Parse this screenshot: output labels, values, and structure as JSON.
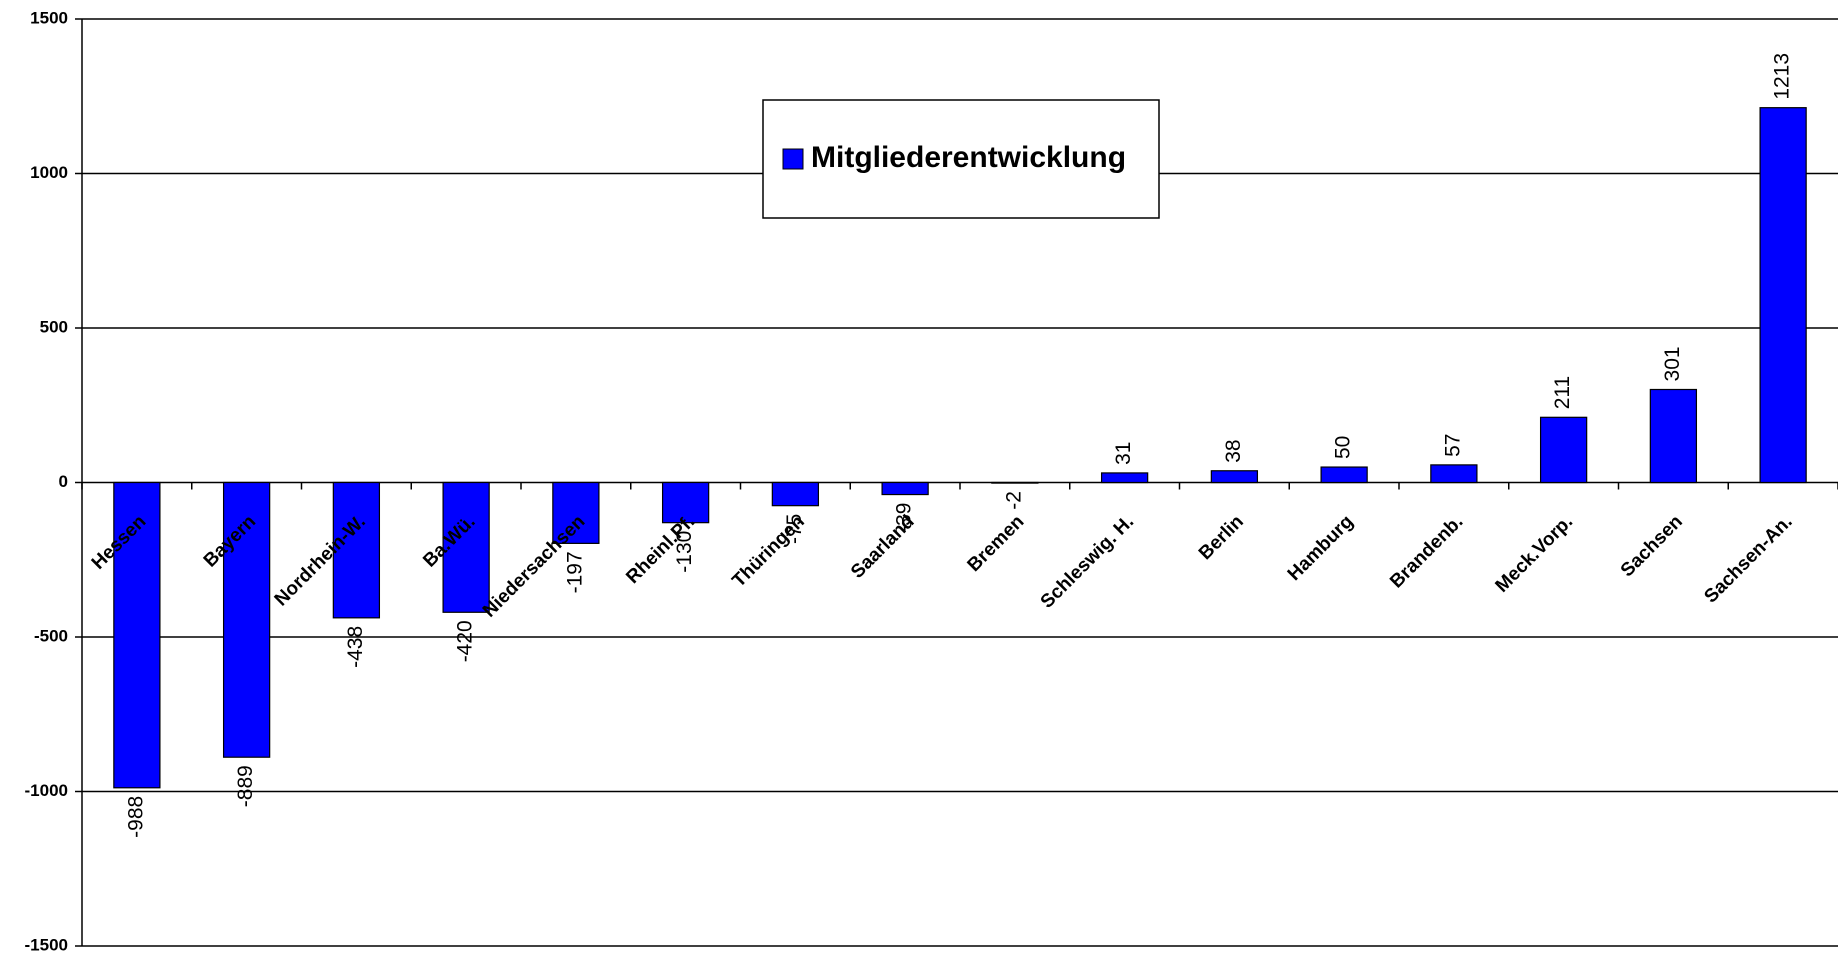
{
  "chart_data": {
    "type": "bar",
    "categories": [
      "Hessen",
      "Bayern",
      "Nordrhein-W.",
      "Ba.Wü.",
      "Niedersachsen",
      "Rheinl.Pf.",
      "Thüringen",
      "Saarland",
      "Bremen",
      "Schleswig. H.",
      "Berlin",
      "Hamburg",
      "Brandenb.",
      "Meck.Vorp.",
      "Sachsen",
      "Sachsen-An."
    ],
    "series": [
      {
        "name": "Mitgliederentwicklung",
        "color": "#0000ff",
        "values": [
          -988,
          -889,
          -438,
          -420,
          -197,
          -130,
          -75,
          -39,
          -2,
          31,
          38,
          50,
          57,
          211,
          301,
          1213
        ]
      }
    ],
    "ylim": [
      -1500,
      1500
    ],
    "yticks": [
      -1500,
      -1000,
      -500,
      0,
      500,
      1000,
      1500
    ],
    "grid": true,
    "legend": "top-center"
  }
}
